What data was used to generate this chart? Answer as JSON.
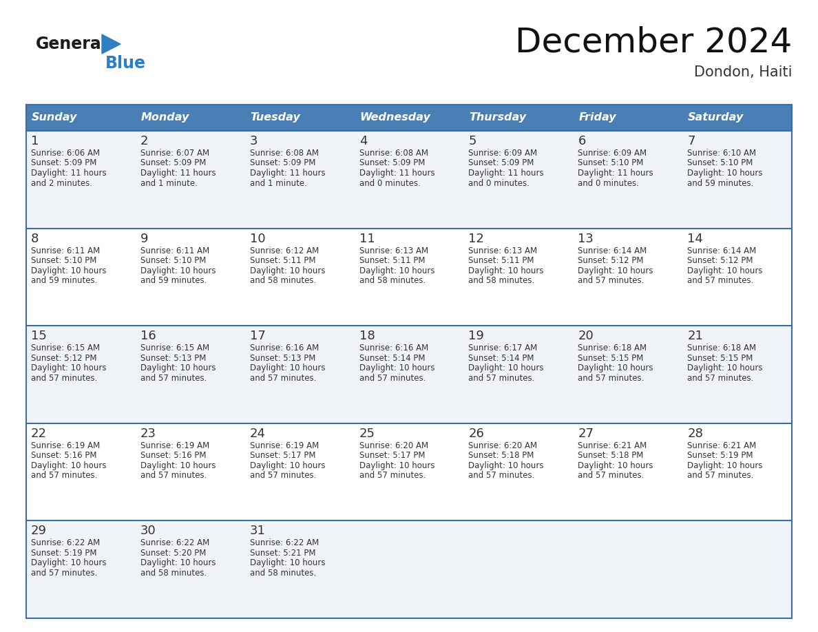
{
  "title": "December 2024",
  "subtitle": "Dondon, Haiti",
  "header_bg": "#4a7fb5",
  "header_text": "#ffffff",
  "cell_bg_odd": "#f0f4f8",
  "cell_bg_even": "#ffffff",
  "border_color": "#3a6ea5",
  "text_color": "#333333",
  "days_of_week": [
    "Sunday",
    "Monday",
    "Tuesday",
    "Wednesday",
    "Thursday",
    "Friday",
    "Saturday"
  ],
  "weeks": [
    [
      {
        "day": "1",
        "sunrise": "6:06 AM",
        "sunset": "5:09 PM",
        "daylight": "11 hours",
        "daylight2": "and 2 minutes."
      },
      {
        "day": "2",
        "sunrise": "6:07 AM",
        "sunset": "5:09 PM",
        "daylight": "11 hours",
        "daylight2": "and 1 minute."
      },
      {
        "day": "3",
        "sunrise": "6:08 AM",
        "sunset": "5:09 PM",
        "daylight": "11 hours",
        "daylight2": "and 1 minute."
      },
      {
        "day": "4",
        "sunrise": "6:08 AM",
        "sunset": "5:09 PM",
        "daylight": "11 hours",
        "daylight2": "and 0 minutes."
      },
      {
        "day": "5",
        "sunrise": "6:09 AM",
        "sunset": "5:09 PM",
        "daylight": "11 hours",
        "daylight2": "and 0 minutes."
      },
      {
        "day": "6",
        "sunrise": "6:09 AM",
        "sunset": "5:10 PM",
        "daylight": "11 hours",
        "daylight2": "and 0 minutes."
      },
      {
        "day": "7",
        "sunrise": "6:10 AM",
        "sunset": "5:10 PM",
        "daylight": "10 hours",
        "daylight2": "and 59 minutes."
      }
    ],
    [
      {
        "day": "8",
        "sunrise": "6:11 AM",
        "sunset": "5:10 PM",
        "daylight": "10 hours",
        "daylight2": "and 59 minutes."
      },
      {
        "day": "9",
        "sunrise": "6:11 AM",
        "sunset": "5:10 PM",
        "daylight": "10 hours",
        "daylight2": "and 59 minutes."
      },
      {
        "day": "10",
        "sunrise": "6:12 AM",
        "sunset": "5:11 PM",
        "daylight": "10 hours",
        "daylight2": "and 58 minutes."
      },
      {
        "day": "11",
        "sunrise": "6:13 AM",
        "sunset": "5:11 PM",
        "daylight": "10 hours",
        "daylight2": "and 58 minutes."
      },
      {
        "day": "12",
        "sunrise": "6:13 AM",
        "sunset": "5:11 PM",
        "daylight": "10 hours",
        "daylight2": "and 58 minutes."
      },
      {
        "day": "13",
        "sunrise": "6:14 AM",
        "sunset": "5:12 PM",
        "daylight": "10 hours",
        "daylight2": "and 57 minutes."
      },
      {
        "day": "14",
        "sunrise": "6:14 AM",
        "sunset": "5:12 PM",
        "daylight": "10 hours",
        "daylight2": "and 57 minutes."
      }
    ],
    [
      {
        "day": "15",
        "sunrise": "6:15 AM",
        "sunset": "5:12 PM",
        "daylight": "10 hours",
        "daylight2": "and 57 minutes."
      },
      {
        "day": "16",
        "sunrise": "6:15 AM",
        "sunset": "5:13 PM",
        "daylight": "10 hours",
        "daylight2": "and 57 minutes."
      },
      {
        "day": "17",
        "sunrise": "6:16 AM",
        "sunset": "5:13 PM",
        "daylight": "10 hours",
        "daylight2": "and 57 minutes."
      },
      {
        "day": "18",
        "sunrise": "6:16 AM",
        "sunset": "5:14 PM",
        "daylight": "10 hours",
        "daylight2": "and 57 minutes."
      },
      {
        "day": "19",
        "sunrise": "6:17 AM",
        "sunset": "5:14 PM",
        "daylight": "10 hours",
        "daylight2": "and 57 minutes."
      },
      {
        "day": "20",
        "sunrise": "6:18 AM",
        "sunset": "5:15 PM",
        "daylight": "10 hours",
        "daylight2": "and 57 minutes."
      },
      {
        "day": "21",
        "sunrise": "6:18 AM",
        "sunset": "5:15 PM",
        "daylight": "10 hours",
        "daylight2": "and 57 minutes."
      }
    ],
    [
      {
        "day": "22",
        "sunrise": "6:19 AM",
        "sunset": "5:16 PM",
        "daylight": "10 hours",
        "daylight2": "and 57 minutes."
      },
      {
        "day": "23",
        "sunrise": "6:19 AM",
        "sunset": "5:16 PM",
        "daylight": "10 hours",
        "daylight2": "and 57 minutes."
      },
      {
        "day": "24",
        "sunrise": "6:19 AM",
        "sunset": "5:17 PM",
        "daylight": "10 hours",
        "daylight2": "and 57 minutes."
      },
      {
        "day": "25",
        "sunrise": "6:20 AM",
        "sunset": "5:17 PM",
        "daylight": "10 hours",
        "daylight2": "and 57 minutes."
      },
      {
        "day": "26",
        "sunrise": "6:20 AM",
        "sunset": "5:18 PM",
        "daylight": "10 hours",
        "daylight2": "and 57 minutes."
      },
      {
        "day": "27",
        "sunrise": "6:21 AM",
        "sunset": "5:18 PM",
        "daylight": "10 hours",
        "daylight2": "and 57 minutes."
      },
      {
        "day": "28",
        "sunrise": "6:21 AM",
        "sunset": "5:19 PM",
        "daylight": "10 hours",
        "daylight2": "and 57 minutes."
      }
    ],
    [
      {
        "day": "29",
        "sunrise": "6:22 AM",
        "sunset": "5:19 PM",
        "daylight": "10 hours",
        "daylight2": "and 57 minutes."
      },
      {
        "day": "30",
        "sunrise": "6:22 AM",
        "sunset": "5:20 PM",
        "daylight": "10 hours",
        "daylight2": "and 58 minutes."
      },
      {
        "day": "31",
        "sunrise": "6:22 AM",
        "sunset": "5:21 PM",
        "daylight": "10 hours",
        "daylight2": "and 58 minutes."
      },
      null,
      null,
      null,
      null
    ]
  ],
  "logo_general_color": "#1a1a1a",
  "logo_blue_color": "#2e7fc2",
  "logo_triangle_color": "#2e7fc2"
}
